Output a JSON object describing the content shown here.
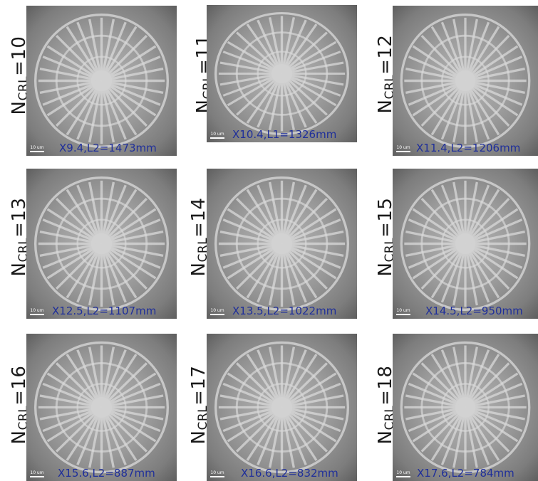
{
  "panels": [
    {
      "n_main": "N",
      "n_sub": "CRL",
      "n_value": "=10",
      "scale": "10 um",
      "caption": "X9.4,L2=1473mm"
    },
    {
      "n_main": "N",
      "n_sub": "CRL",
      "n_value": "=11",
      "scale": "10 um",
      "caption": "X10.4,L1=1326mm"
    },
    {
      "n_main": "N",
      "n_sub": "CRL",
      "n_value": "=12",
      "scale": "10 um",
      "caption": "X11.4,L2=1206mm"
    },
    {
      "n_main": "N",
      "n_sub": "CRL",
      "n_value": "=13",
      "scale": "10 um",
      "caption": "X12.5,L2=1107mm"
    },
    {
      "n_main": "N",
      "n_sub": "CRL",
      "n_value": "=14",
      "scale": "10 um",
      "caption": "X13.5,L2=1022mm"
    },
    {
      "n_main": "N",
      "n_sub": "CRL",
      "n_value": "=15",
      "scale": "10 um",
      "caption": "X14.5,L2=950mm"
    },
    {
      "n_main": "N",
      "n_sub": "CRL",
      "n_value": "=16",
      "scale": "10 um",
      "caption": "X15.6,L2=887mm"
    },
    {
      "n_main": "N",
      "n_sub": "CRL",
      "n_value": "=17",
      "scale": "10 um",
      "caption": "X16.6,L2=832mm"
    },
    {
      "n_main": "N",
      "n_sub": "CRL",
      "n_value": "=18",
      "scale": "10 um",
      "caption": "X17.6,L2=784mm"
    }
  ],
  "colors": {
    "caption": "#1f2f9a",
    "label": "#1a1a1a",
    "scalebar": "#ffffff"
  }
}
